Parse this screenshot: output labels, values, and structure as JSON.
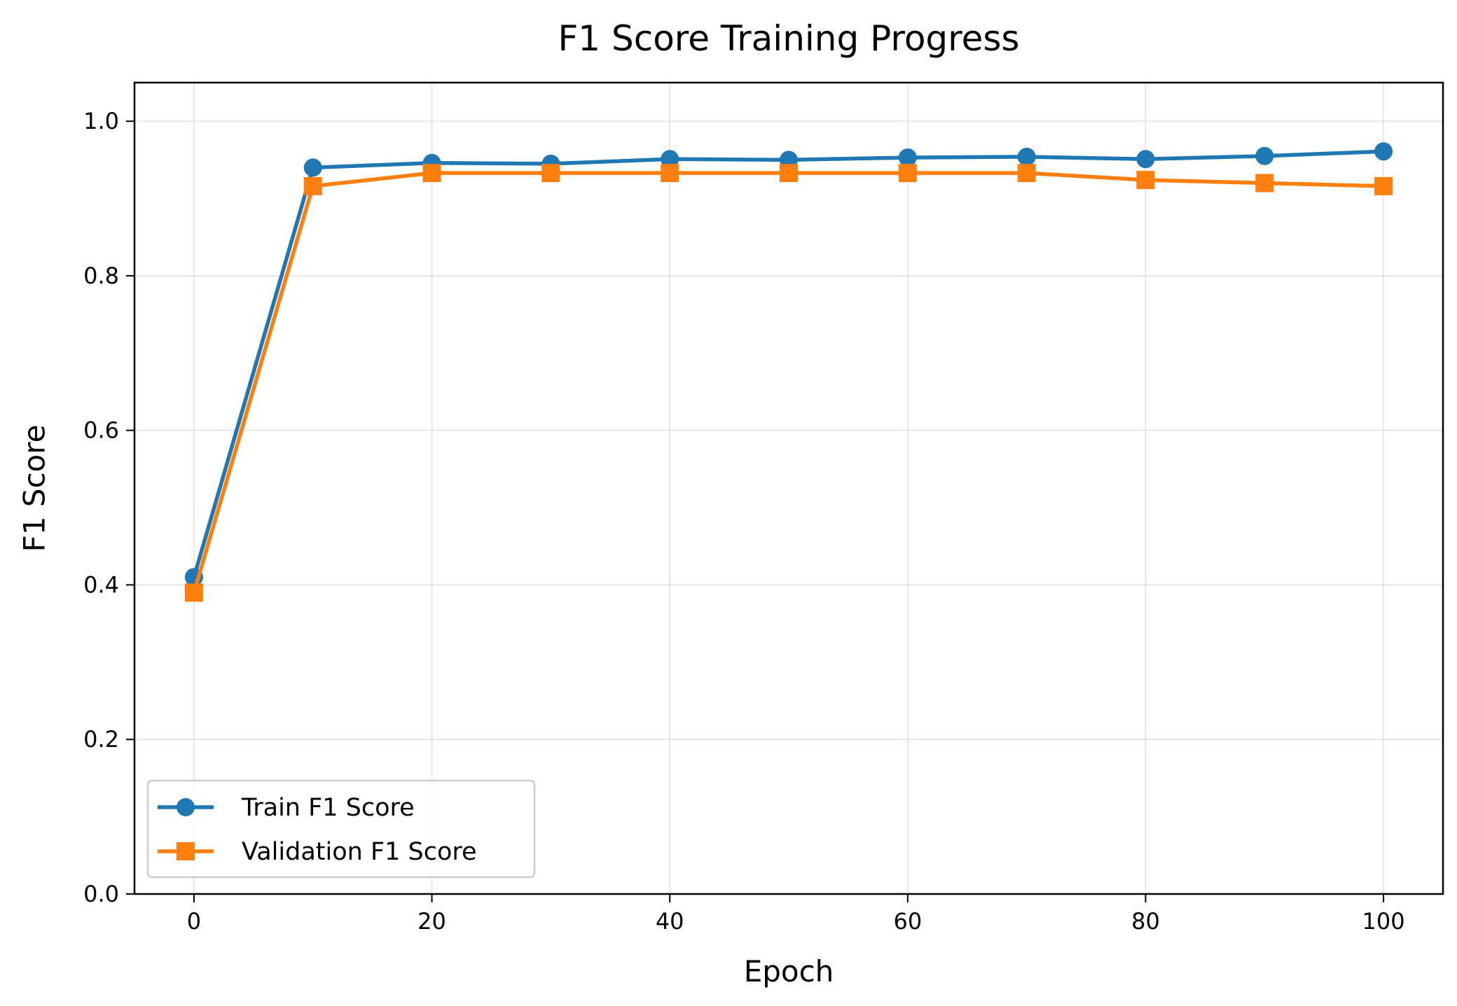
{
  "chart_data": {
    "type": "line",
    "title": "F1 Score Training Progress",
    "xlabel": "Epoch",
    "ylabel": "F1 Score",
    "x": [
      0,
      10,
      20,
      30,
      40,
      50,
      60,
      70,
      80,
      90,
      100
    ],
    "xlim": [
      -5,
      105
    ],
    "ylim": [
      0.0,
      1.05
    ],
    "xticks": [
      "0",
      "20",
      "40",
      "60",
      "80",
      "100"
    ],
    "yticks": [
      "0.0",
      "0.2",
      "0.4",
      "0.6",
      "0.8",
      "1.0"
    ],
    "grid": true,
    "legend_position": "lower-left",
    "series": [
      {
        "name": "Train F1 Score",
        "color": "#1f77b4",
        "marker": "circle",
        "values": [
          0.41,
          0.94,
          0.946,
          0.945,
          0.951,
          0.95,
          0.953,
          0.954,
          0.951,
          0.955,
          0.961
        ]
      },
      {
        "name": "Validation F1 Score",
        "color": "#ff7f0e",
        "marker": "square",
        "values": [
          0.39,
          0.916,
          0.933,
          0.933,
          0.933,
          0.933,
          0.933,
          0.933,
          0.924,
          0.92,
          0.916
        ]
      }
    ]
  }
}
